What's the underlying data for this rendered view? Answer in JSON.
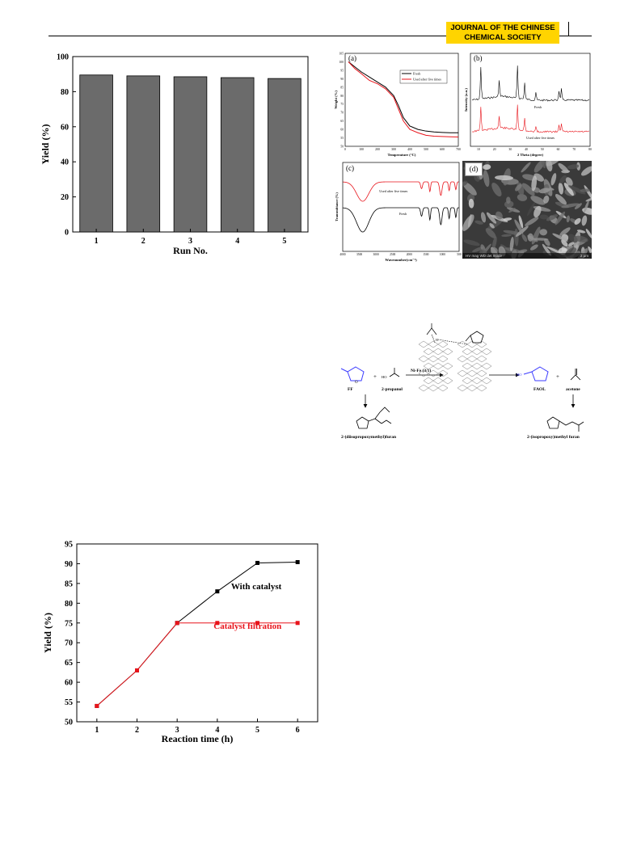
{
  "header": {
    "journal_line1": "JOURNAL OF THE CHINESE",
    "journal_line2": "CHEMICAL SOCIETY"
  },
  "colors": {
    "badge": "#FFD400",
    "series_black": "#000000",
    "series_red": "#E8141B",
    "bar_fill": "#6b6b6b"
  },
  "figures": {
    "tga": {
      "panel_label": "(a)"
    },
    "xrd": {
      "panel_label": "(b)"
    },
    "ftir": {
      "panel_label": "(c)"
    },
    "sem": {
      "panel_label": "(d)",
      "scale_text_left": "HV   mag   WD   det   mode",
      "scale_text_right": "2 μm"
    },
    "scheme": {
      "ff": "FF",
      "propanol": "2-propanol",
      "catalyst": "Ni-Fe (3/1)",
      "faol": "FAOL",
      "acetone": "acetone",
      "byproduct_left": "2-(diisopropoxymethyl)furan",
      "byproduct_right": "2-(isopropoxy)methyl furan",
      "plus1": "+",
      "plus2": "+",
      "oh": "HO",
      "h": "H",
      "o": "O"
    }
  },
  "chart_data": [
    {
      "type": "bar",
      "categories": [
        "1",
        "2",
        "3",
        "4",
        "5"
      ],
      "values": [
        89.5,
        89.0,
        88.5,
        88.0,
        87.5
      ],
      "xlabel": "Run No.",
      "ylabel": "Yield (%)",
      "ylim": [
        0,
        100
      ],
      "yticks": [
        0,
        20,
        40,
        60,
        80,
        100
      ]
    },
    {
      "type": "line",
      "title": "",
      "x": [
        1,
        2,
        3,
        4,
        5,
        6
      ],
      "series": [
        {
          "name": "With catalyst",
          "x": [
            1,
            2,
            3,
            4,
            5,
            6
          ],
          "values": [
            54,
            63,
            75,
            83,
            90.2,
            90.4
          ],
          "color": "#000000"
        },
        {
          "name": "Catalyst filtration",
          "x": [
            1,
            2,
            3,
            4,
            5,
            6
          ],
          "values": [
            54,
            63,
            75,
            75,
            75,
            75
          ],
          "color": "#E8141B"
        }
      ],
      "xlabel": "Reaction time (h)",
      "ylabel": "Yield (%)",
      "xlim": [
        0.5,
        6.5
      ],
      "ylim": [
        50,
        95
      ],
      "yticks": [
        50,
        55,
        60,
        65,
        70,
        75,
        80,
        85,
        90,
        95
      ],
      "xticks": [
        1,
        2,
        3,
        4,
        5,
        6
      ]
    },
    {
      "type": "line",
      "panel": "(a)",
      "xlabel": "Temperature (°C)",
      "ylabel": "Weight (%)",
      "xlim": [
        0,
        700
      ],
      "ylim": [
        50,
        105
      ],
      "xticks": [
        0,
        100,
        200,
        300,
        400,
        500,
        600,
        700
      ],
      "yticks": [
        50,
        55,
        60,
        65,
        70,
        75,
        80,
        85,
        90,
        95,
        100,
        105
      ],
      "series": [
        {
          "name": "Fresh",
          "color": "#000000",
          "x": [
            20,
            60,
            100,
            150,
            200,
            250,
            300,
            330,
            360,
            400,
            450,
            500,
            550,
            600,
            650,
            700
          ],
          "values": [
            100,
            97,
            94,
            91,
            88,
            85,
            80,
            74,
            67,
            62,
            60,
            59,
            58.5,
            58.2,
            58,
            58
          ]
        },
        {
          "name": "Used after five times",
          "color": "#E8141B",
          "x": [
            20,
            60,
            100,
            150,
            200,
            250,
            300,
            330,
            360,
            400,
            450,
            500,
            550,
            600,
            650,
            700
          ],
          "values": [
            100,
            96,
            93,
            89,
            87,
            84,
            79,
            72,
            65,
            60,
            58,
            56.5,
            56,
            55.8,
            55.6,
            55.5
          ]
        }
      ]
    },
    {
      "type": "line",
      "panel": "(b)",
      "xlabel": "2 Theta (degree)",
      "ylabel": "Intensity (a.u.)",
      "xlim": [
        5,
        80
      ],
      "xticks": [
        10,
        20,
        30,
        40,
        50,
        60,
        70,
        80
      ],
      "series": [
        {
          "name": "Fresh",
          "color": "#000000"
        },
        {
          "name": "Used after five times",
          "color": "#E8141B"
        }
      ]
    },
    {
      "type": "line",
      "panel": "(c)",
      "xlabel": "Wavenumber(cm⁻¹)",
      "ylabel": "Transmittance (%)",
      "xlim": [
        4000,
        500
      ],
      "xticks": [
        4000,
        3500,
        3000,
        2500,
        2000,
        1500,
        1000,
        500
      ],
      "series": [
        {
          "name": "Used after five times",
          "color": "#E8141B"
        },
        {
          "name": "Fresh",
          "color": "#000000"
        }
      ]
    }
  ]
}
